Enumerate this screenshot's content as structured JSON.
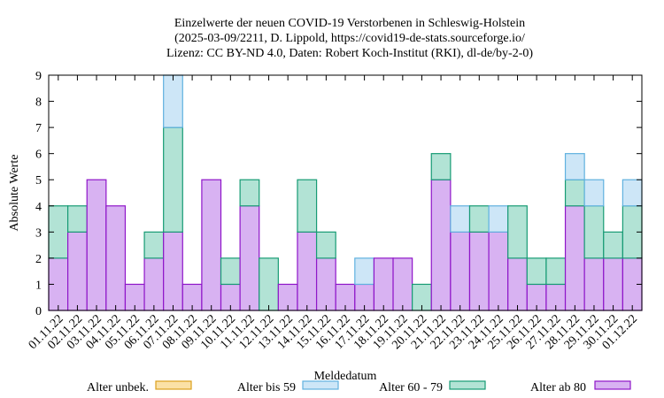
{
  "chart_data": {
    "type": "bar",
    "stacked": true,
    "title_lines": [
      "Einzelwerte der neuen COVID-19 Verstorbenen in Schleswig-Holstein",
      "(2025-03-09/2211, D. Lippold, https://covid19-de-stats.sourceforge.io/",
      "Lizenz: CC BY-ND 4.0, Daten: Robert Koch-Institut (RKI), dl-de/by-2-0)"
    ],
    "xlabel": "Meldedatum",
    "ylabel": "Absolute Werte",
    "ylim": [
      0,
      9
    ],
    "yticks": [
      0,
      1,
      2,
      3,
      4,
      5,
      6,
      7,
      8,
      9
    ],
    "grid": false,
    "legend_position": "bottom",
    "categories": [
      "01.11.22",
      "02.11.22",
      "03.11.22",
      "04.11.22",
      "05.11.22",
      "06.11.22",
      "07.11.22",
      "08.11.22",
      "09.11.22",
      "10.11.22",
      "11.11.22",
      "12.11.22",
      "13.11.22",
      "14.11.22",
      "15.11.22",
      "16.11.22",
      "17.11.22",
      "18.11.22",
      "19.11.22",
      "20.11.22",
      "21.11.22",
      "22.11.22",
      "23.11.22",
      "24.11.22",
      "25.11.22",
      "26.11.22",
      "27.11.22",
      "28.11.22",
      "29.11.22",
      "30.11.22",
      "01.12.22"
    ],
    "series": [
      {
        "name": "Alter ab 80",
        "color": "#d8b2f2",
        "edge": "#8f16c9",
        "values": [
          2,
          3,
          5,
          4,
          1,
          2,
          3,
          1,
          5,
          1,
          4,
          0,
          1,
          3,
          2,
          1,
          1,
          2,
          2,
          0,
          5,
          3,
          3,
          3,
          2,
          1,
          1,
          4,
          2,
          2,
          2
        ]
      },
      {
        "name": "Alter 60 - 79",
        "color": "#b2e3d5",
        "edge": "#179b74",
        "values": [
          2,
          1,
          0,
          0,
          0,
          1,
          4,
          0,
          0,
          1,
          1,
          2,
          0,
          2,
          1,
          0,
          0,
          0,
          0,
          1,
          1,
          0,
          1,
          0,
          2,
          1,
          1,
          1,
          2,
          1,
          2
        ]
      },
      {
        "name": "Alter bis 59",
        "color": "#cde6f7",
        "edge": "#60b1df",
        "values": [
          0,
          0,
          0,
          0,
          0,
          0,
          2,
          0,
          0,
          0,
          0,
          0,
          0,
          0,
          0,
          0,
          1,
          0,
          0,
          0,
          0,
          1,
          0,
          1,
          0,
          0,
          0,
          1,
          1,
          0,
          1
        ]
      },
      {
        "name": "Alter unbek.",
        "color": "#fbe1a6",
        "edge": "#dba01d",
        "values": [
          0,
          0,
          0,
          0,
          0,
          0,
          0,
          0,
          0,
          0,
          0,
          0,
          0,
          0,
          0,
          0,
          0,
          0,
          0,
          0,
          0,
          0,
          0,
          0,
          0,
          0,
          0,
          0,
          0,
          0,
          0
        ]
      }
    ],
    "legend_order": [
      "Alter unbek.",
      "Alter bis 59",
      "Alter 60 - 79",
      "Alter ab 80"
    ]
  }
}
